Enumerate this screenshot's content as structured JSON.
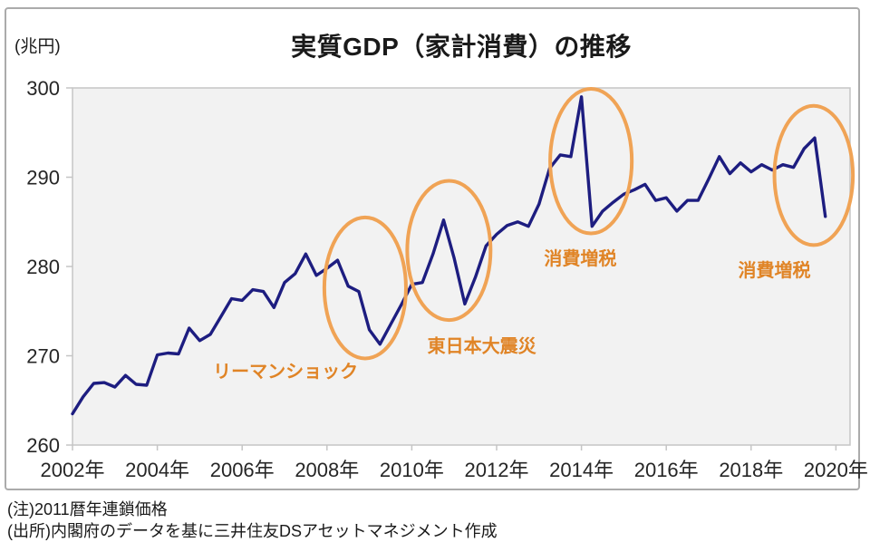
{
  "unit_label": "(兆円)",
  "title": "実質GDP（家計消費）の推移",
  "notes": {
    "line1": "(注)2011暦年連鎖価格",
    "line2": "(出所)内閣府のデータを基に三井住友DSアセットマネジメント作成"
  },
  "colors": {
    "line": "#1d1d80",
    "ellipse": "#f0a355",
    "annotation_text": "#e08426",
    "plot_bg": "#f2f2f2",
    "plot_border": "#c5c5c5",
    "axis_text": "#262626",
    "note_text": "#1a1a1a"
  },
  "chart_data": {
    "type": "line",
    "title": "実質GDP（家計消費）の推移",
    "xlabel": "",
    "ylabel": "兆円",
    "ylim": [
      260,
      300
    ],
    "yticks": [
      300,
      290,
      280,
      270,
      260
    ],
    "xticks": [
      "2002年",
      "2004年",
      "2006年",
      "2008年",
      "2010年",
      "2012年",
      "2014年",
      "2016年",
      "2018年",
      "2020年"
    ],
    "x_range": [
      "2002Q1",
      "2019Q4"
    ],
    "x_freq": "quarterly",
    "grid": false,
    "legend": "none",
    "series": [
      {
        "name": "実質GDP（家計消費）",
        "values": [
          263.5,
          265.4,
          266.9,
          267.0,
          266.5,
          267.8,
          266.8,
          266.7,
          270.1,
          270.3,
          270.2,
          273.1,
          271.7,
          272.4,
          274.4,
          276.4,
          276.2,
          277.4,
          277.2,
          275.4,
          278.2,
          279.2,
          281.4,
          279.0,
          279.8,
          280.7,
          277.8,
          277.2,
          272.9,
          271.3,
          273.5,
          275.7,
          278.0,
          278.2,
          281.4,
          285.2,
          280.9,
          275.8,
          278.8,
          282.3,
          283.6,
          284.6,
          285.0,
          284.5,
          287.0,
          291.0,
          292.5,
          292.3,
          299.0,
          284.5,
          286.2,
          287.2,
          288.1,
          288.6,
          289.2,
          287.4,
          287.7,
          286.2,
          287.4,
          287.4,
          289.8,
          292.3,
          290.4,
          291.6,
          290.6,
          291.4,
          290.8,
          291.4,
          291.1,
          293.2,
          294.4,
          285.6
        ]
      }
    ],
    "annotations": [
      {
        "label": "リーマンショック",
        "label_pos": {
          "q": 20.1,
          "v": 268.4
        },
        "ellipse": {
          "q": 27.6,
          "v": 277.6,
          "rq": 3.85,
          "rv": 7.9
        }
      },
      {
        "label": "東日本大震災",
        "label_pos": {
          "q": 38.6,
          "v": 271.2
        },
        "ellipse": {
          "q": 35.5,
          "v": 281.8,
          "rq": 3.93,
          "rv": 7.8
        }
      },
      {
        "label": "消費増税",
        "label_pos": {
          "q": 47.9,
          "v": 281.0
        },
        "ellipse": {
          "q": 48.9,
          "v": 291.8,
          "rq": 3.85,
          "rv": 8.1
        }
      },
      {
        "label": "消費増税",
        "label_pos": {
          "q": 66.2,
          "v": 279.7
        },
        "ellipse": {
          "q": 69.9,
          "v": 290.2,
          "rq": 3.7,
          "rv": 7.8
        }
      }
    ]
  }
}
